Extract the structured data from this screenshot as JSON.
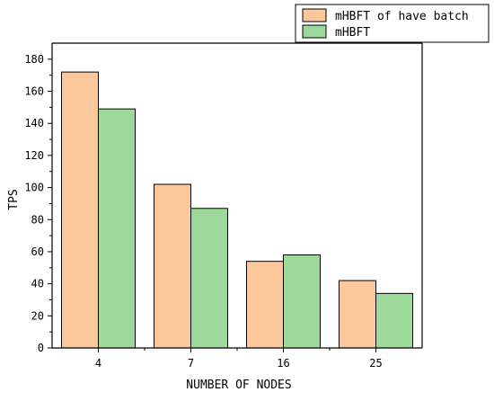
{
  "chart_data": {
    "type": "bar",
    "categories": [
      "4",
      "7",
      "16",
      "25"
    ],
    "series": [
      {
        "name": "mHBFT of have batch",
        "values": [
          172,
          102,
          54,
          42
        ],
        "color": "#fcc79a"
      },
      {
        "name": "mHBFT",
        "values": [
          149,
          87,
          58,
          34
        ],
        "color": "#9dd99a"
      }
    ],
    "xlabel": "NUMBER OF NODES",
    "ylabel": "TPS",
    "ylim": [
      0,
      190
    ],
    "yticks": [
      0,
      20,
      40,
      60,
      80,
      100,
      120,
      140,
      160,
      180
    ],
    "grid": false,
    "legend_position": "top-right"
  }
}
